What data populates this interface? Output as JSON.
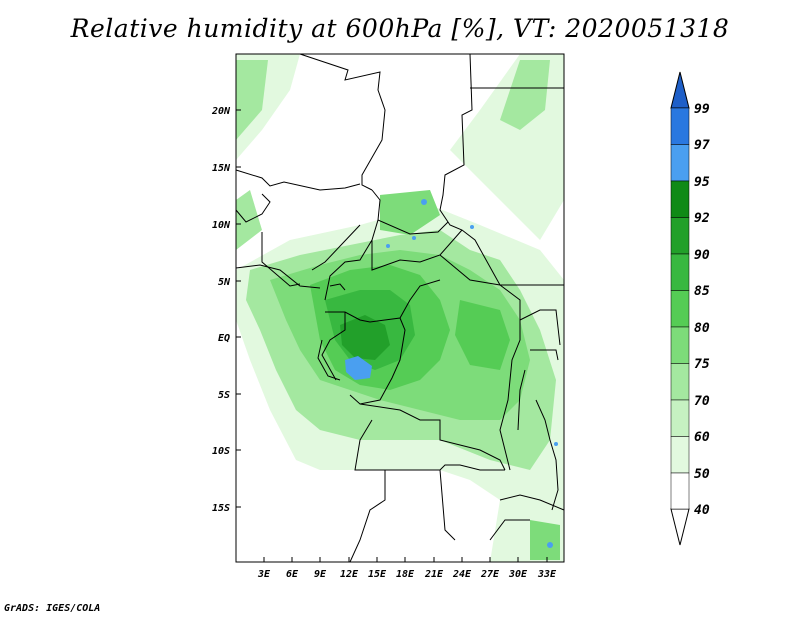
{
  "title": "Relative humidity at 600hPa [%], VT: 2020051318",
  "footer": "GrADS: IGES/COLA",
  "axes": {
    "lat_labels": [
      "20N",
      "15N",
      "10N",
      "5N",
      "EQ",
      "5S",
      "10S",
      "15S"
    ],
    "lon_labels": [
      "3E",
      "6E",
      "9E",
      "12E",
      "15E",
      "18E",
      "21E",
      "24E",
      "27E",
      "30E",
      "33E"
    ]
  },
  "colorbar": {
    "levels": [
      "99",
      "97",
      "95",
      "92",
      "90",
      "85",
      "80",
      "75",
      "70",
      "60",
      "50",
      "40"
    ],
    "colors": [
      "#1e5fc8",
      "#2a78e0",
      "#4a9ff0",
      "#0f8a16",
      "#22a02a",
      "#38b840",
      "#55cc55",
      "#7ddc7a",
      "#a4e8a0",
      "#c6f2c2",
      "#e2f9df",
      "#f4fdf2"
    ]
  }
}
